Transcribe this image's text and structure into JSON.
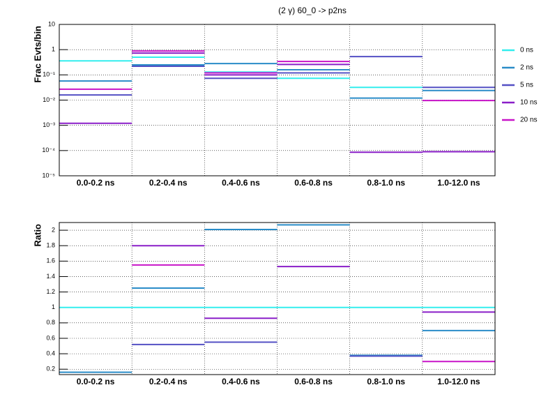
{
  "chart_data": [
    {
      "type": "step",
      "title": "(2 γ) 60_0 -> p2ns",
      "y_label": "Frac Evts/bin",
      "log_y": true,
      "grid": true,
      "legend": "right",
      "categories": [
        "0.0-0.2 ns",
        "0.2-0.4 ns",
        "0.4-0.6 ns",
        "0.6-0.8 ns",
        "0.8-1.0 ns",
        "1.0-12.0 ns"
      ],
      "ylim": [
        1e-05,
        10
      ],
      "yticks": [
        {
          "value": 1e-05,
          "label": "10⁻⁵"
        },
        {
          "value": 0.0001,
          "label": "10⁻⁴"
        },
        {
          "value": 0.001,
          "label": "10⁻³"
        },
        {
          "value": 0.01,
          "label": "10⁻²"
        },
        {
          "value": 0.1,
          "label": "10⁻¹"
        },
        1,
        10
      ],
      "series": [
        {
          "name": "0 ns",
          "color": "#33eeee",
          "values": [
            0.36,
            0.5,
            0.13,
            0.073,
            0.032,
            null
          ]
        },
        {
          "name": "2 ns",
          "color": "#2a8cc8",
          "values": [
            0.057,
            0.25,
            0.28,
            0.16,
            0.012,
            0.024
          ]
        },
        {
          "name": "5 ns",
          "color": "#5450c4",
          "values": [
            0.016,
            0.22,
            0.073,
            0.12,
            0.53,
            0.032
          ]
        },
        {
          "name": "10 ns",
          "color": "#8a1ec8",
          "values": [
            0.0012,
            0.73,
            0.1,
            0.26,
            8.6e-05,
            9e-05
          ]
        },
        {
          "name": "20 ns",
          "color": "#c814c8",
          "values": [
            0.027,
            0.88,
            0.12,
            0.34,
            null,
            0.0096
          ]
        }
      ]
    },
    {
      "type": "step",
      "y_label": "Ratio",
      "log_y": false,
      "grid": true,
      "categories": [
        "0.0-0.2 ns",
        "0.2-0.4 ns",
        "0.4-0.6 ns",
        "0.6-0.8 ns",
        "0.8-1.0 ns",
        "1.0-12.0 ns"
      ],
      "ylim": [
        0.13,
        2.1
      ],
      "yticks": [
        0.2,
        0.4,
        0.6,
        0.8,
        1,
        1.2,
        1.4,
        1.6,
        1.8,
        2
      ],
      "series": [
        {
          "color": "#33eeee",
          "values": [
            1,
            1,
            1,
            1,
            1,
            1
          ]
        },
        {
          "color": "#2a8cc8",
          "values": [
            0.16,
            1.25,
            2.01,
            2.07,
            0.38,
            0.7
          ]
        },
        {
          "color": "#5450c4",
          "values": [
            null,
            0.52,
            0.55,
            null,
            0.37,
            null
          ]
        },
        {
          "color": "#8a1ec8",
          "values": [
            null,
            1.8,
            0.86,
            1.53,
            null,
            0.94
          ]
        },
        {
          "color": "#c814c8",
          "values": [
            null,
            1.55,
            null,
            null,
            null,
            0.3
          ]
        }
      ]
    }
  ]
}
